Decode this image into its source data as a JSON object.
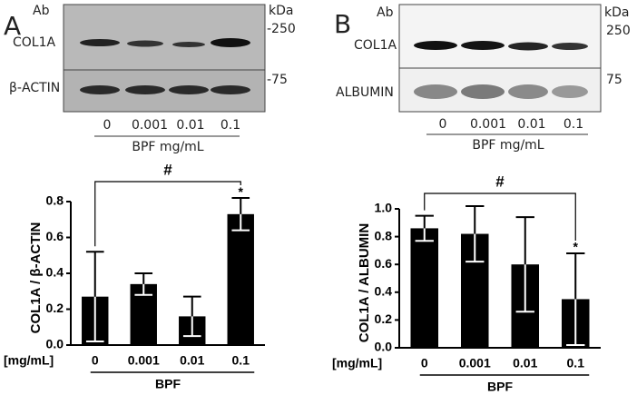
{
  "blots": [
    {
      "panel": "A",
      "ab": "Ab",
      "kda": "kDa",
      "marker_high": "-250",
      "marker_low": "-75",
      "row_top": "COL1A",
      "row_bottom": "β-ACTIN",
      "lanes": [
        "0",
        "0.001",
        "0.01",
        "0.1"
      ],
      "treatment": "BPF mg/mL"
    },
    {
      "panel": "B",
      "ab": "Ab",
      "kda": "kDa",
      "marker_high": "250",
      "marker_low": "75",
      "row_top": "COL1A",
      "row_bottom": "ALBUMIN",
      "lanes": [
        "0",
        "0.001",
        "0.01",
        "0.1"
      ],
      "treatment": "BPF mg/mL"
    }
  ],
  "chart_data": [
    {
      "type": "bar",
      "y_label": "COL1A / β-ACTIN",
      "categories": [
        "0",
        "0.001",
        "0.01",
        "0.1"
      ],
      "values": [
        0.27,
        0.34,
        0.16,
        0.73
      ],
      "errors": [
        0.25,
        0.06,
        0.11,
        0.09
      ],
      "color": "#000000",
      "ylim": [
        0,
        0.8
      ],
      "yticks": [
        {
          "value": 0,
          "label": "0.0"
        },
        0.2,
        0.4,
        0.6,
        0.8
      ],
      "x_unit": "[mg/mL]",
      "x_group": "BPF",
      "significance": "#",
      "star": "*"
    },
    {
      "type": "bar",
      "y_label": "COL1A / ALBUMIN",
      "categories": [
        "0",
        "0.001",
        "0.01",
        "0.1"
      ],
      "values": [
        0.86,
        0.82,
        0.6,
        0.35
      ],
      "errors": [
        0.09,
        0.2,
        0.34,
        0.33
      ],
      "color": "#000000",
      "ylim": [
        0,
        1
      ],
      "yticks": [
        {
          "value": 0,
          "label": "0.0"
        },
        0.2,
        0.4,
        0.6,
        0.8,
        {
          "value": 1,
          "label": "1.0"
        }
      ],
      "x_unit": "[mg/mL]",
      "x_group": "BPF",
      "significance": "#",
      "star": "*"
    }
  ]
}
